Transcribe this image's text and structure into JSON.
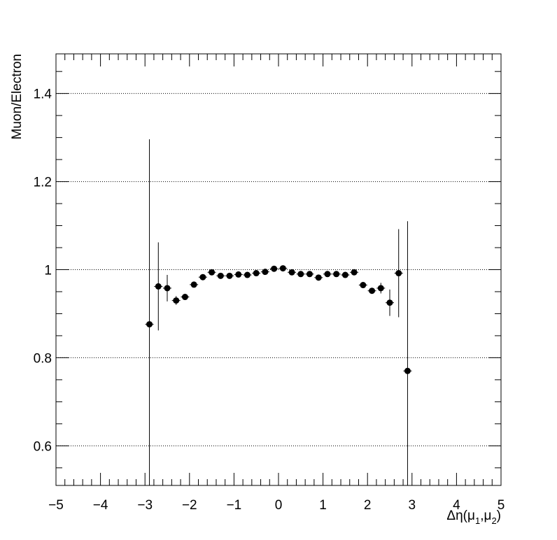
{
  "chart_data": {
    "type": "scatter",
    "title": "",
    "xlabel": "Δη(μ",
    "xlabel_sub1": "1",
    "xlabel_mid": ",μ",
    "xlabel_sub2": "2",
    "xlabel_end": ")",
    "ylabel": "Muon/Electron",
    "xlim": [
      -5,
      5
    ],
    "ylim": [
      0.51,
      1.49
    ],
    "grid": "horizontal dotted",
    "marker_color": "#000000",
    "x_ticks": [
      -5,
      -4,
      -3,
      -2,
      -1,
      0,
      1,
      2,
      3,
      4,
      5
    ],
    "x_tick_labels": [
      "−5",
      "−4",
      "−3",
      "−2",
      "−1",
      "0",
      "1",
      "2",
      "3",
      "4",
      "5"
    ],
    "y_ticks": [
      0.6,
      0.8,
      1.0,
      1.2,
      1.4
    ],
    "y_tick_labels": [
      "0.6",
      "0.8",
      "1",
      "1.2",
      "1.4"
    ],
    "series": [
      {
        "points": [
          {
            "x": -2.9,
            "y": 0.876,
            "err": 0.42
          },
          {
            "x": -2.7,
            "y": 0.962,
            "err": 0.1
          },
          {
            "x": -2.5,
            "y": 0.958,
            "err": 0.03
          },
          {
            "x": -2.3,
            "y": 0.93,
            "err": 0.01
          },
          {
            "x": -2.1,
            "y": 0.938,
            "err": 0.006
          },
          {
            "x": -1.9,
            "y": 0.966,
            "err": 0.005
          },
          {
            "x": -1.7,
            "y": 0.983,
            "err": 0.004
          },
          {
            "x": -1.5,
            "y": 0.994,
            "err": 0.004
          },
          {
            "x": -1.3,
            "y": 0.986,
            "err": 0.003
          },
          {
            "x": -1.1,
            "y": 0.986,
            "err": 0.003
          },
          {
            "x": -0.9,
            "y": 0.989,
            "err": 0.003
          },
          {
            "x": -0.7,
            "y": 0.988,
            "err": 0.003
          },
          {
            "x": -0.5,
            "y": 0.992,
            "err": 0.003
          },
          {
            "x": -0.3,
            "y": 0.995,
            "err": 0.003
          },
          {
            "x": -0.1,
            "y": 1.002,
            "err": 0.003
          },
          {
            "x": 0.1,
            "y": 1.003,
            "err": 0.003
          },
          {
            "x": 0.3,
            "y": 0.994,
            "err": 0.003
          },
          {
            "x": 0.5,
            "y": 0.99,
            "err": 0.003
          },
          {
            "x": 0.7,
            "y": 0.99,
            "err": 0.003
          },
          {
            "x": 0.9,
            "y": 0.982,
            "err": 0.003
          },
          {
            "x": 1.1,
            "y": 0.99,
            "err": 0.003
          },
          {
            "x": 1.3,
            "y": 0.99,
            "err": 0.003
          },
          {
            "x": 1.5,
            "y": 0.988,
            "err": 0.004
          },
          {
            "x": 1.7,
            "y": 0.994,
            "err": 0.004
          },
          {
            "x": 1.9,
            "y": 0.965,
            "err": 0.005
          },
          {
            "x": 2.1,
            "y": 0.952,
            "err": 0.006
          },
          {
            "x": 2.3,
            "y": 0.958,
            "err": 0.012
          },
          {
            "x": 2.5,
            "y": 0.925,
            "err": 0.03
          },
          {
            "x": 2.7,
            "y": 0.992,
            "err": 0.1
          },
          {
            "x": 2.9,
            "y": 0.77,
            "err": 0.34
          }
        ]
      }
    ]
  }
}
